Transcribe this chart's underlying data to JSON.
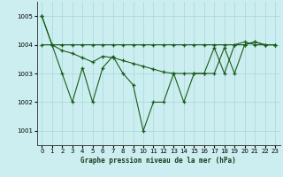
{
  "xlabel": "Graphe pression niveau de la mer (hPa)",
  "background_color": "#cceef0",
  "grid_color": "#aadddd",
  "line_color": "#1a5c1a",
  "x_ticks": [
    0,
    1,
    2,
    3,
    4,
    5,
    6,
    7,
    8,
    9,
    10,
    11,
    12,
    13,
    14,
    15,
    16,
    17,
    18,
    19,
    20,
    21,
    22,
    23
  ],
  "ylim": [
    1000.5,
    1005.5
  ],
  "yticks": [
    1001,
    1002,
    1003,
    1004,
    1005
  ],
  "series_flat": [
    1005.0,
    1004.0,
    1004.0,
    1004.0,
    1004.0,
    1004.0,
    1004.0,
    1004.0,
    1004.0,
    1004.0,
    1004.0,
    1004.0,
    1004.0,
    1004.0,
    1004.0,
    1004.0,
    1004.0,
    1004.0,
    1004.0,
    1004.0,
    1004.0,
    1004.1,
    1004.0,
    1004.0
  ],
  "series_mid": [
    1005.0,
    1004.0,
    1003.8,
    1003.7,
    1003.55,
    1003.4,
    1003.6,
    1003.55,
    1003.45,
    1003.35,
    1003.25,
    1003.15,
    1003.05,
    1003.0,
    1003.0,
    1003.0,
    1003.0,
    1003.0,
    1003.9,
    1003.0,
    1004.0,
    1004.1,
    1004.0,
    1004.0
  ],
  "series_wild": [
    1004.0,
    1004.0,
    1003.0,
    1002.0,
    1003.2,
    1002.0,
    1003.2,
    1003.6,
    1003.0,
    1002.6,
    1001.0,
    1002.0,
    1002.0,
    1003.0,
    1002.0,
    1003.0,
    1003.0,
    1003.9,
    1003.0,
    1004.0,
    1004.1,
    1004.0,
    1004.0,
    1004.0
  ]
}
